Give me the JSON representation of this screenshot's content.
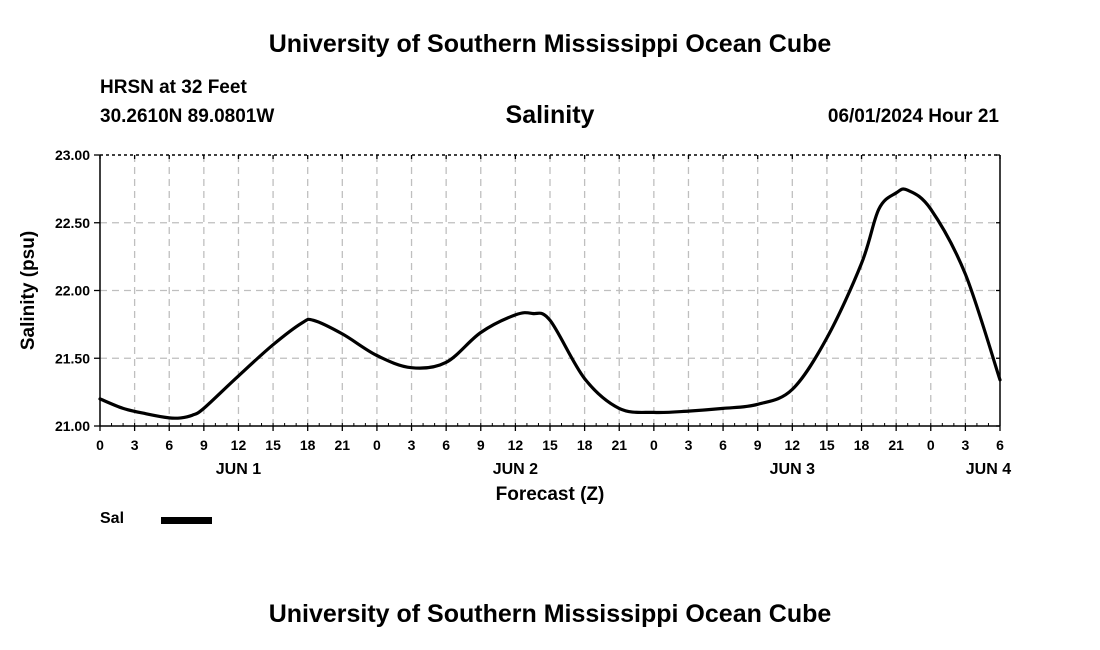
{
  "header": {
    "title": "University of Southern Mississippi Ocean Cube",
    "station": "HRSN at 32 Feet",
    "coordinates": "30.2610N  89.0801W",
    "timestamp": "06/01/2024 Hour 21"
  },
  "footer": {
    "title": "University of Southern Mississippi Ocean Cube"
  },
  "legend": {
    "label": "Sal"
  },
  "colors": {
    "line": "#000000",
    "grid": "#bfbfbf",
    "background": "#ffffff"
  },
  "chart_data": {
    "type": "line",
    "title": "Salinity",
    "xlabel": "Forecast (Z)",
    "ylabel": "Salinity (psu)",
    "x_unit": "hours since 2024-06-01 00Z",
    "xlim": [
      0,
      78
    ],
    "ylim": [
      21.0,
      23.0
    ],
    "y_ticks": [
      "21.00",
      "21.50",
      "22.00",
      "22.50",
      "23.00"
    ],
    "x_tick_labels": [
      "0",
      "3",
      "6",
      "9",
      "12",
      "15",
      "18",
      "21",
      "0",
      "3",
      "6",
      "9",
      "12",
      "15",
      "18",
      "21",
      "0",
      "3",
      "6",
      "9",
      "12",
      "15",
      "18",
      "21",
      "0",
      "3",
      "6"
    ],
    "day_labels": [
      {
        "label": "JUN 1",
        "hour": 12
      },
      {
        "label": "JUN 2",
        "hour": 36
      },
      {
        "label": "JUN 3",
        "hour": 60
      },
      {
        "label": "JUN 4",
        "hour": 77
      }
    ],
    "grid": true,
    "series": [
      {
        "name": "Sal",
        "x": [
          0,
          2,
          4,
          6,
          7,
          8,
          9,
          12,
          15,
          17.5,
          18.5,
          21,
          24,
          27,
          30,
          33,
          36,
          37.5,
          39,
          42,
          45,
          48,
          51,
          54,
          57,
          60,
          63,
          66,
          67.5,
          69,
          70,
          72,
          75,
          78
        ],
        "values": [
          21.2,
          21.13,
          21.09,
          21.06,
          21.06,
          21.08,
          21.13,
          21.37,
          21.6,
          21.76,
          21.78,
          21.68,
          21.52,
          21.43,
          21.47,
          21.69,
          21.82,
          21.83,
          21.78,
          21.35,
          21.13,
          21.1,
          21.11,
          21.13,
          21.16,
          21.27,
          21.65,
          22.2,
          22.6,
          22.72,
          22.74,
          22.6,
          22.12,
          21.34
        ]
      }
    ]
  }
}
